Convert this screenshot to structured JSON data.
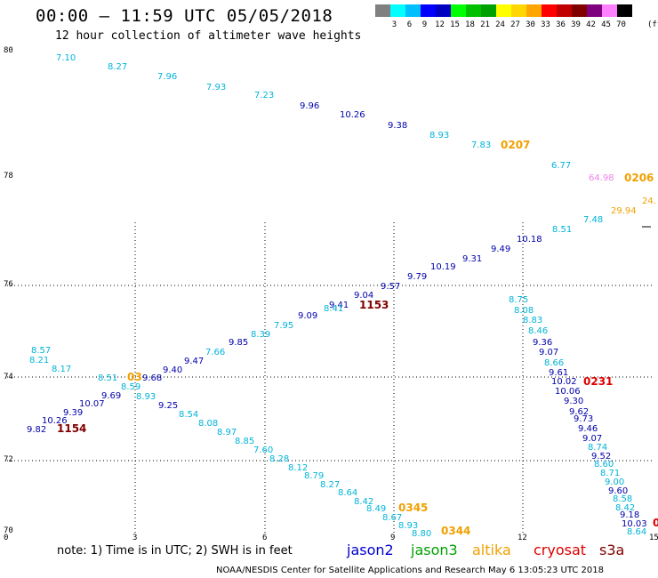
{
  "header": {
    "title": "00:00 — 11:59 UTC 05/05/2018",
    "subtitle": "12 hour collection of altimeter wave heights"
  },
  "legend": {
    "unit": "(ft)",
    "colors": [
      "#808080",
      "#00ffff",
      "#00bfff",
      "#0000ff",
      "#0000c0",
      "#00ff00",
      "#00c000",
      "#00a000",
      "#ffff00",
      "#ffd700",
      "#ffa500",
      "#ff0000",
      "#c00000",
      "#800000",
      "#800080",
      "#ff80ff",
      "#000000"
    ],
    "labels": [
      "3",
      "6",
      "9",
      "12",
      "15",
      "18",
      "21",
      "24",
      "27",
      "30",
      "33",
      "36",
      "39",
      "42",
      "45",
      "70"
    ]
  },
  "axes": {
    "lat_labels": [
      {
        "text": "80"
      },
      {
        "text": "78"
      },
      {
        "text": "76"
      },
      {
        "text": "74"
      },
      {
        "text": "72"
      },
      {
        "text": "70"
      }
    ],
    "lon_labels": [
      {
        "text": "0"
      },
      {
        "text": "3"
      },
      {
        "text": "6"
      },
      {
        "text": "9"
      },
      {
        "text": "12"
      },
      {
        "text": "15"
      }
    ]
  },
  "observations": [
    {
      "v": "7.10",
      "c": "#00b4d8"
    },
    {
      "v": "8.27",
      "c": "#00b4d8"
    },
    {
      "v": "7.96",
      "c": "#00b4d8"
    },
    {
      "v": "7.93",
      "c": "#00b4d8"
    },
    {
      "v": "7.23",
      "c": "#00b4d8"
    },
    {
      "v": "9.96",
      "c": "#0000aa"
    },
    {
      "v": "10.26",
      "c": "#0000aa"
    },
    {
      "v": "9.38",
      "c": "#0000aa"
    },
    {
      "v": "8.93",
      "c": "#00b4d8"
    },
    {
      "v": "7.83",
      "c": "#00b4d8"
    },
    {
      "v": "6.77",
      "c": "#00b4d8"
    },
    {
      "v": "64.98",
      "c": "#ee82ee"
    },
    {
      "v": "29.94",
      "c": "#f0a000"
    },
    {
      "v": "24.",
      "c": "#f0a000"
    },
    {
      "v": "7.48",
      "c": "#00b4d8"
    },
    {
      "v": "8.51",
      "c": "#00b4d8"
    },
    {
      "v": "10.18",
      "c": "#0000aa"
    },
    {
      "v": "9.49",
      "c": "#0000aa"
    },
    {
      "v": "9.31",
      "c": "#0000aa"
    },
    {
      "v": "10.19",
      "c": "#0000aa"
    },
    {
      "v": "9.79",
      "c": "#0000aa"
    },
    {
      "v": "9.57",
      "c": "#0000aa"
    },
    {
      "v": "9.04",
      "c": "#0000aa"
    },
    {
      "v": "9.41",
      "c": "#0000aa"
    },
    {
      "v": "8.41",
      "c": "#00b4d8"
    },
    {
      "v": "9.09",
      "c": "#0000aa"
    },
    {
      "v": "7.95",
      "c": "#00b4d8"
    },
    {
      "v": "8.39",
      "c": "#00b4d8"
    },
    {
      "v": "9.85",
      "c": "#0000aa"
    },
    {
      "v": "7.66",
      "c": "#00b4d8"
    },
    {
      "v": "9.47",
      "c": "#0000aa"
    },
    {
      "v": "9.40",
      "c": "#0000aa"
    },
    {
      "v": "9.68",
      "c": "#0000aa"
    },
    {
      "v": "8.57",
      "c": "#00b4d8"
    },
    {
      "v": "8.21",
      "c": "#00b4d8"
    },
    {
      "v": "8.17",
      "c": "#00b4d8"
    },
    {
      "v": "8.51",
      "c": "#00b4d8"
    },
    {
      "v": "8.59",
      "c": "#00b4d8"
    },
    {
      "v": "9.69",
      "c": "#0000aa"
    },
    {
      "v": "10.07",
      "c": "#0000aa"
    },
    {
      "v": "9.39",
      "c": "#0000aa"
    },
    {
      "v": "10.26",
      "c": "#0000aa"
    },
    {
      "v": "9.82",
      "c": "#0000aa"
    },
    {
      "v": "8.93",
      "c": "#00b4d8"
    },
    {
      "v": "9.25",
      "c": "#0000aa"
    },
    {
      "v": "8.54",
      "c": "#00b4d8"
    },
    {
      "v": "8.08",
      "c": "#00b4d8"
    },
    {
      "v": "8.97",
      "c": "#00b4d8"
    },
    {
      "v": "8.85",
      "c": "#00b4d8"
    },
    {
      "v": "7.60",
      "c": "#00b4d8"
    },
    {
      "v": "8.28",
      "c": "#00b4d8"
    },
    {
      "v": "8.12",
      "c": "#00b4d8"
    },
    {
      "v": "8.79",
      "c": "#00b4d8"
    },
    {
      "v": "8.27",
      "c": "#00b4d8"
    },
    {
      "v": "8.64",
      "c": "#00b4d8"
    },
    {
      "v": "8.42",
      "c": "#00b4d8"
    },
    {
      "v": "8.49",
      "c": "#00b4d8"
    },
    {
      "v": "8.67",
      "c": "#00b4d8"
    },
    {
      "v": "8.93",
      "c": "#00b4d8"
    },
    {
      "v": "8.80",
      "c": "#00b4d8"
    },
    {
      "v": "8.75",
      "c": "#00b4d8"
    },
    {
      "v": "8.08",
      "c": "#00b4d8"
    },
    {
      "v": "8.83",
      "c": "#00b4d8"
    },
    {
      "v": "8.46",
      "c": "#00b4d8"
    },
    {
      "v": "9.36",
      "c": "#0000aa"
    },
    {
      "v": "9.07",
      "c": "#0000aa"
    },
    {
      "v": "8.66",
      "c": "#00b4d8"
    },
    {
      "v": "9.61",
      "c": "#0000aa"
    },
    {
      "v": "10.02",
      "c": "#0000aa"
    },
    {
      "v": "10.06",
      "c": "#0000aa"
    },
    {
      "v": "9.30",
      "c": "#0000aa"
    },
    {
      "v": "9.62",
      "c": "#0000aa"
    },
    {
      "v": "9.73",
      "c": "#0000aa"
    },
    {
      "v": "9.46",
      "c": "#0000aa"
    },
    {
      "v": "9.07",
      "c": "#0000aa"
    },
    {
      "v": "8.74",
      "c": "#00b4d8"
    },
    {
      "v": "9.52",
      "c": "#0000aa"
    },
    {
      "v": "8.60",
      "c": "#00b4d8"
    },
    {
      "v": "8.71",
      "c": "#00b4d8"
    },
    {
      "v": "9.00",
      "c": "#00b4d8"
    },
    {
      "v": "9.60",
      "c": "#0000aa"
    },
    {
      "v": "8.58",
      "c": "#00b4d8"
    },
    {
      "v": "8.42",
      "c": "#00b4d8"
    },
    {
      "v": "9.18",
      "c": "#0000aa"
    },
    {
      "v": "10.03",
      "c": "#0000aa"
    },
    {
      "v": "8.64",
      "c": "#00b4d8"
    }
  ],
  "time_labels": [
    {
      "t": "0207",
      "c": "#f0a000"
    },
    {
      "t": "0206",
      "c": "#f0a000"
    },
    {
      "t": "1153",
      "c": "#800000"
    },
    {
      "t": "0231",
      "c": "#dd0000"
    },
    {
      "t": "1154",
      "c": "#800000"
    },
    {
      "t": "0345",
      "c": "#f0a000"
    },
    {
      "t": "0344",
      "c": "#f0a000"
    },
    {
      "t": "03",
      "c": "#f0a000"
    },
    {
      "t": "0",
      "c": "#dd0000"
    }
  ],
  "footer": {
    "note": "note: 1) Time is in UTC; 2) SWH is in feet",
    "satellites": [
      {
        "name": "jason2",
        "color": "#0000cc"
      },
      {
        "name": "jason3",
        "color": "#00a000"
      },
      {
        "name": "altika",
        "color": "#f0a000"
      },
      {
        "name": "cryosat",
        "color": "#dd0000"
      },
      {
        "name": "s3a",
        "color": "#800000"
      }
    ],
    "credit": "NOAA/NESDIS Center for Satellite Applications and Research    May  6 13:05:23 UTC 2018"
  }
}
